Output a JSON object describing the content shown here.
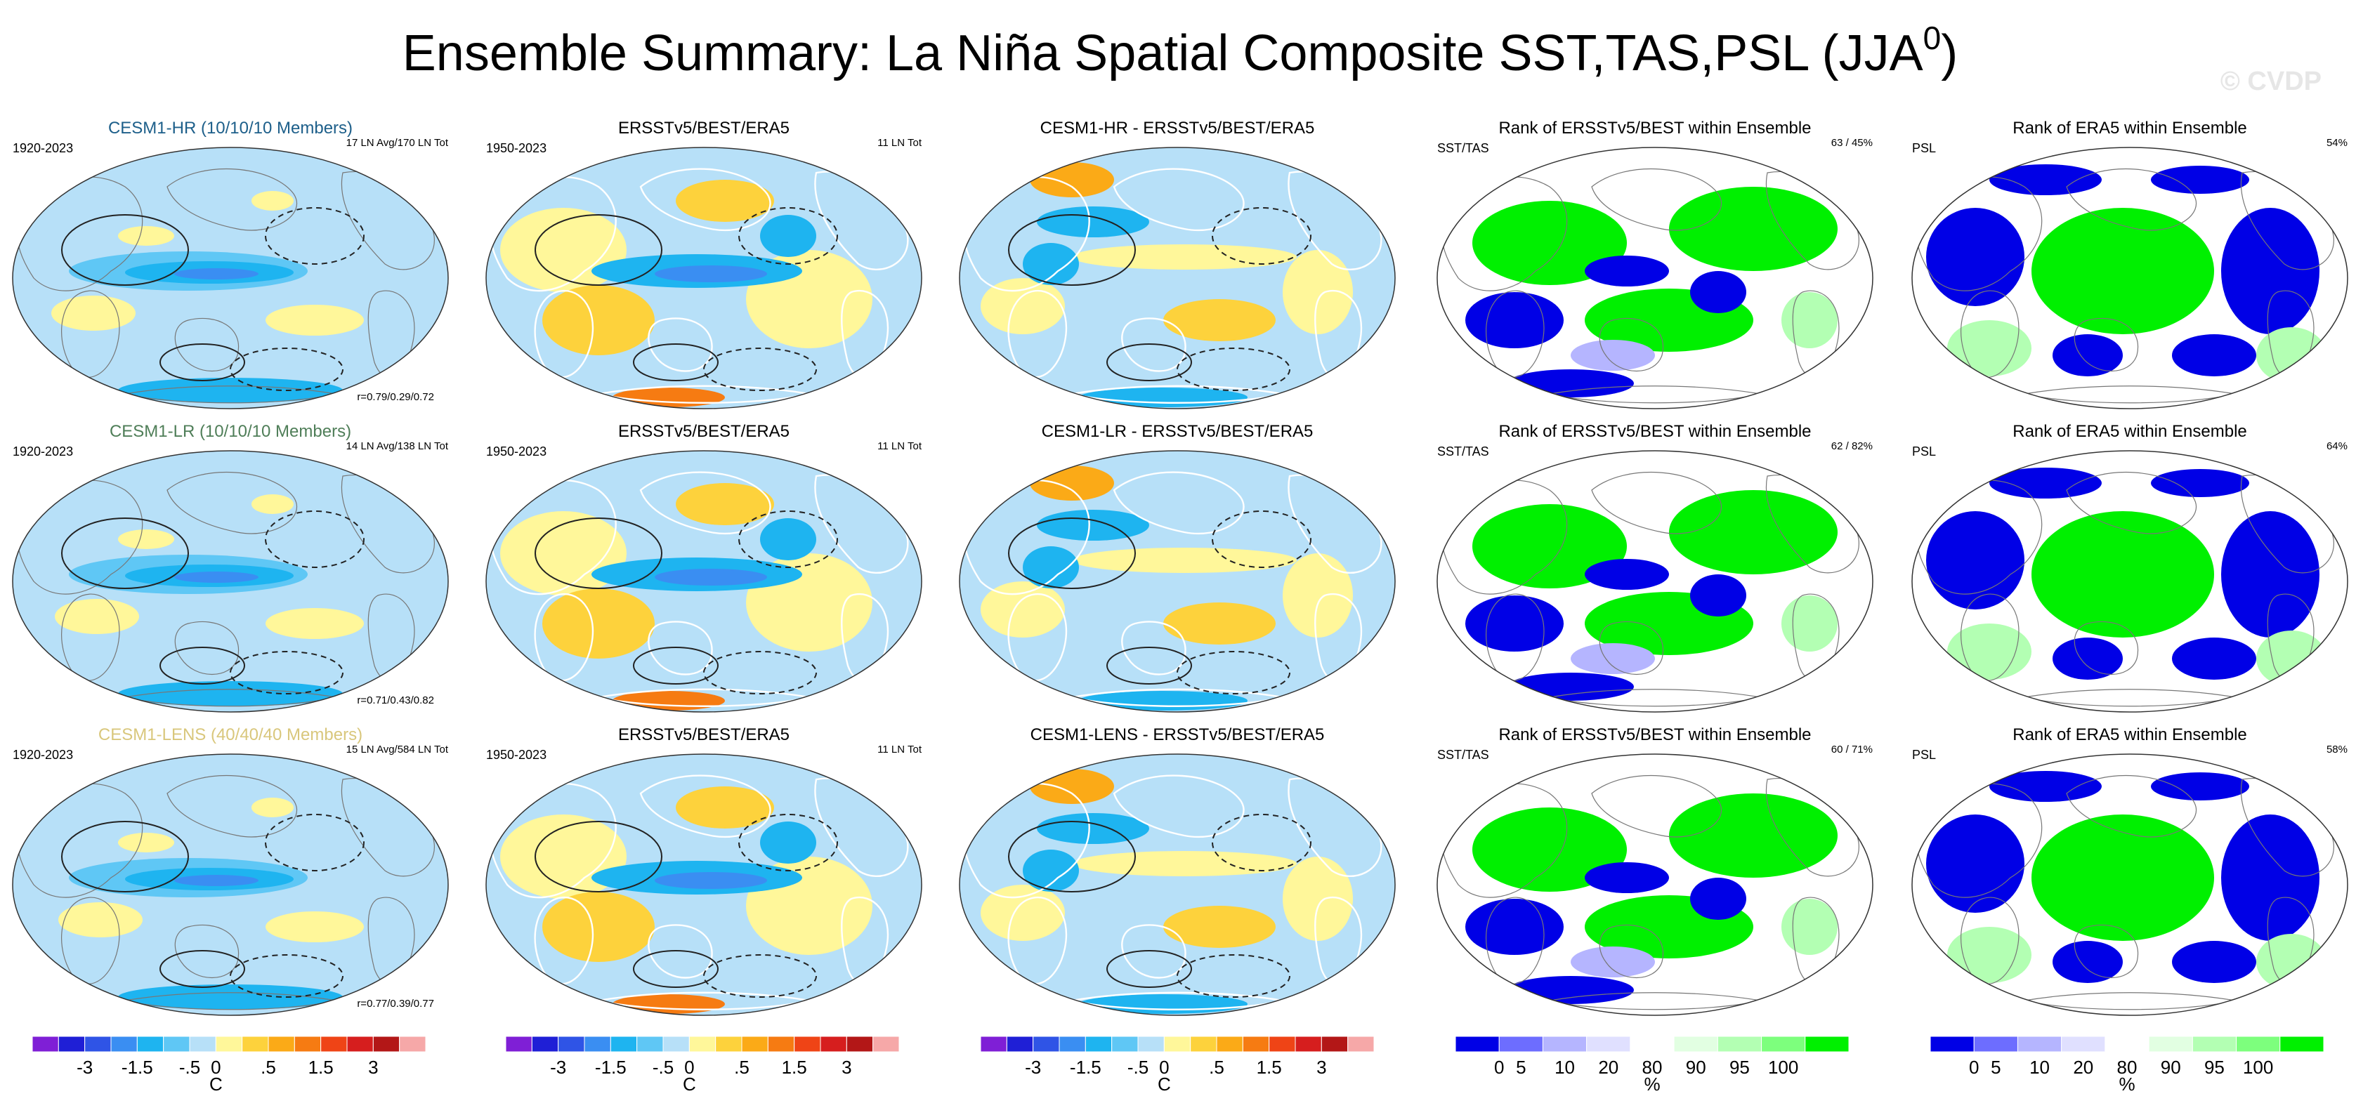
{
  "page": {
    "title": "Ensemble Summary: La Niña Spatial Composite SST,TAS,PSL (JJA",
    "title_sup": "0",
    "title_close": ")",
    "watermark": "© CVDP"
  },
  "colors": {
    "temp_scale": [
      "#7f1fd6",
      "#1f1fd6",
      "#2f54e6",
      "#3a8ef2",
      "#1eb4f0",
      "#5fc7f5",
      "#b7e0f8",
      "#fff79a",
      "#fdd23c",
      "#fbaa17",
      "#f67b12",
      "#ef4416",
      "#d61e1e",
      "#b31717",
      "#f6a8a8"
    ],
    "rank_scale": [
      "#0000e6",
      "#6d6dff",
      "#b5b5ff",
      "#e0e0ff",
      "#ffffff",
      "#e2ffe2",
      "#b3ffb3",
      "#7dff7d",
      "#00f000"
    ],
    "land_outline": "#777777",
    "contour": "#222222",
    "member_hr": "#1d5f8a",
    "member_lr": "#4f7e58",
    "member_lens": "#d9c77c"
  },
  "chart_data": [
    {
      "type": "heatmap",
      "row": 0,
      "col": 0,
      "title": "CESM1-HR (10/10/10 Members)",
      "title_color": "member_hr",
      "left_label": "1920-2023",
      "right_label": "17 LN Avg/170 LN Tot",
      "bottom_label": "r=0.79/0.29/0.72",
      "field": "model"
    },
    {
      "type": "heatmap",
      "row": 0,
      "col": 1,
      "title": "ERSSTv5/BEST/ERA5",
      "left_label": "1950-2023",
      "right_label": "11 LN Tot",
      "bottom_label": "",
      "field": "obs"
    },
    {
      "type": "heatmap",
      "row": 0,
      "col": 2,
      "title": "CESM1-HR - ERSSTv5/BEST/ERA5",
      "left_label": "",
      "right_label": "",
      "bottom_label": "",
      "field": "diff"
    },
    {
      "type": "heatmap",
      "row": 0,
      "col": 3,
      "title": "Rank of ERSSTv5/BEST within Ensemble",
      "left_label": "SST/TAS",
      "right_label": "63 /  45%",
      "bottom_label": "",
      "field": "rank_sst"
    },
    {
      "type": "heatmap",
      "row": 0,
      "col": 4,
      "title": "Rank of ERA5 within Ensemble",
      "left_label": "PSL",
      "right_label": "54%",
      "bottom_label": "",
      "field": "rank_psl"
    },
    {
      "type": "heatmap",
      "row": 1,
      "col": 0,
      "title": "CESM1-LR (10/10/10 Members)",
      "title_color": "member_lr",
      "left_label": "1920-2023",
      "right_label": "14 LN Avg/138 LN Tot",
      "bottom_label": "r=0.71/0.43/0.82",
      "field": "model"
    },
    {
      "type": "heatmap",
      "row": 1,
      "col": 1,
      "title": "ERSSTv5/BEST/ERA5",
      "left_label": "1950-2023",
      "right_label": "11 LN Tot",
      "bottom_label": "",
      "field": "obs"
    },
    {
      "type": "heatmap",
      "row": 1,
      "col": 2,
      "title": "CESM1-LR - ERSSTv5/BEST/ERA5",
      "left_label": "",
      "right_label": "",
      "bottom_label": "",
      "field": "diff"
    },
    {
      "type": "heatmap",
      "row": 1,
      "col": 3,
      "title": "Rank of ERSSTv5/BEST within Ensemble",
      "left_label": "SST/TAS",
      "right_label": "62 /  82%",
      "bottom_label": "",
      "field": "rank_sst"
    },
    {
      "type": "heatmap",
      "row": 1,
      "col": 4,
      "title": "Rank of ERA5 within Ensemble",
      "left_label": "PSL",
      "right_label": "64%",
      "bottom_label": "",
      "field": "rank_psl"
    },
    {
      "type": "heatmap",
      "row": 2,
      "col": 0,
      "title": "CESM1-LENS (40/40/40 Members)",
      "title_color": "member_lens",
      "left_label": "1920-2023",
      "right_label": "15 LN Avg/584 LN Tot",
      "bottom_label": "r=0.77/0.39/0.77",
      "field": "model"
    },
    {
      "type": "heatmap",
      "row": 2,
      "col": 1,
      "title": "ERSSTv5/BEST/ERA5",
      "left_label": "1950-2023",
      "right_label": "11 LN Tot",
      "bottom_label": "",
      "field": "obs"
    },
    {
      "type": "heatmap",
      "row": 2,
      "col": 2,
      "title": "CESM1-LENS - ERSSTv5/BEST/ERA5",
      "left_label": "",
      "right_label": "",
      "bottom_label": "",
      "field": "diff"
    },
    {
      "type": "heatmap",
      "row": 2,
      "col": 3,
      "title": "Rank of ERSSTv5/BEST within Ensemble",
      "left_label": "SST/TAS",
      "right_label": "60 /  71%",
      "bottom_label": "",
      "field": "rank_sst"
    },
    {
      "type": "heatmap",
      "row": 2,
      "col": 4,
      "title": "Rank of ERA5 within Ensemble",
      "left_label": "PSL",
      "right_label": "58%",
      "bottom_label": "",
      "field": "rank_psl"
    }
  ],
  "colorbars": {
    "temp": {
      "ticks": [
        "-3",
        "-1.5",
        "-.5",
        "0",
        ".5",
        "1.5",
        "3"
      ],
      "tick_bounds": [
        2,
        4,
        6,
        7,
        9,
        11,
        13
      ],
      "nboxes": 15,
      "unit": "C"
    },
    "rank": {
      "ticks": [
        "0",
        "5",
        "10",
        "20",
        "80",
        "90",
        "95",
        "100"
      ],
      "bounds": [
        0,
        5,
        10,
        20,
        80,
        90,
        95,
        100
      ],
      "unit": "%"
    }
  }
}
